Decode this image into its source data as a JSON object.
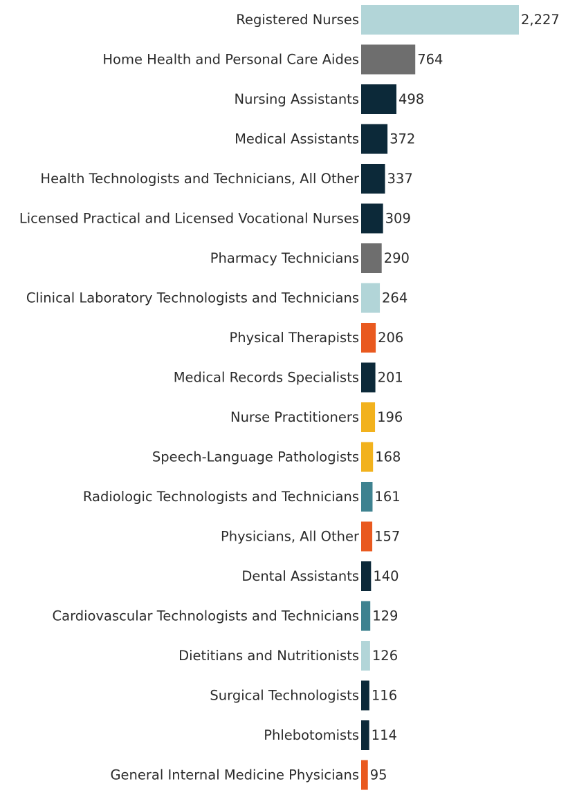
{
  "chart_data": {
    "type": "bar",
    "orientation": "horizontal",
    "categories": [
      "Registered Nurses",
      "Home Health and Personal Care Aides",
      "Nursing Assistants",
      "Medical Assistants",
      "Health Technologists and Technicians, All Other",
      "Licensed Practical and Licensed Vocational Nurses",
      "Pharmacy Technicians",
      "Clinical Laboratory Technologists and Technicians",
      "Physical Therapists",
      "Medical Records Specialists",
      "Nurse Practitioners",
      "Speech-Language Pathologists",
      "Radiologic Technologists and Technicians",
      "Physicians, All Other",
      "Dental Assistants",
      "Cardiovascular Technologists and Technicians",
      "Dietitians and Nutritionists",
      "Surgical Technologists",
      "Phlebotomists",
      "General Internal Medicine Physicians"
    ],
    "values": [
      2227,
      764,
      498,
      372,
      337,
      309,
      290,
      264,
      206,
      201,
      196,
      168,
      161,
      157,
      140,
      129,
      126,
      116,
      114,
      95
    ],
    "value_labels": [
      "2,227",
      "764",
      "498",
      "372",
      "337",
      "309",
      "290",
      "264",
      "206",
      "201",
      "196",
      "168",
      "161",
      "157",
      "140",
      "129",
      "126",
      "116",
      "114",
      "95"
    ],
    "colors": [
      "#b2d5d8",
      "#6e6e6e",
      "#0c2939",
      "#0c2939",
      "#0c2939",
      "#0c2939",
      "#6e6e6e",
      "#b2d5d8",
      "#e9591f",
      "#0c2939",
      "#f2b21d",
      "#f2b21d",
      "#3e8290",
      "#e9591f",
      "#0c2939",
      "#3e8290",
      "#b2d5d8",
      "#0c2939",
      "#0c2939",
      "#e9591f"
    ],
    "xlim": [
      0,
      2227
    ],
    "title": "",
    "xlabel": "",
    "ylabel": "",
    "grid": false,
    "legend": "none"
  }
}
